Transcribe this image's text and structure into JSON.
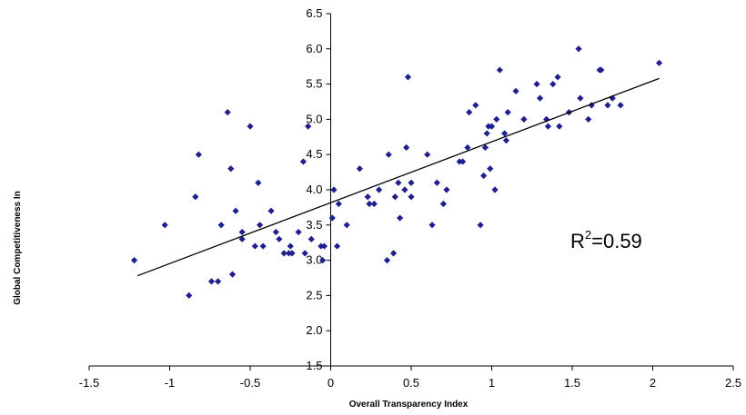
{
  "chart_data": {
    "type": "scatter",
    "xlabel": "Overall Transparency Index",
    "ylabel": "Global Competitiveness In",
    "xlim": [
      -1.5,
      2.5
    ],
    "ylim": [
      1.5,
      6.5
    ],
    "xticks": [
      "-1.5",
      "-1",
      "-0.5",
      "0",
      "0.5",
      "1",
      "1.5",
      "2",
      "2.5"
    ],
    "yticks": [
      "1.5",
      "2.0",
      "2.5",
      "3.0",
      "3.5",
      "4.0",
      "4.5",
      "5.0",
      "5.5",
      "6.0",
      "6.5"
    ],
    "grid": false,
    "legend": "none",
    "marker_color": "#1f1f8f",
    "trendline": {
      "x1": -1.2,
      "y1": 2.78,
      "x2": 2.04,
      "y2": 5.58
    },
    "annotation": {
      "base": "R",
      "sup": "2",
      "value": "=0.59"
    },
    "points": [
      {
        "x": -1.22,
        "y": 3.0
      },
      {
        "x": -1.03,
        "y": 3.5
      },
      {
        "x": -0.88,
        "y": 2.5
      },
      {
        "x": -0.84,
        "y": 3.9
      },
      {
        "x": -0.82,
        "y": 4.5
      },
      {
        "x": -0.74,
        "y": 2.7
      },
      {
        "x": -0.7,
        "y": 2.7
      },
      {
        "x": -0.68,
        "y": 3.5
      },
      {
        "x": -0.64,
        "y": 5.1
      },
      {
        "x": -0.62,
        "y": 4.3
      },
      {
        "x": -0.61,
        "y": 2.8
      },
      {
        "x": -0.59,
        "y": 3.7
      },
      {
        "x": -0.55,
        "y": 3.4
      },
      {
        "x": -0.55,
        "y": 3.3
      },
      {
        "x": -0.5,
        "y": 4.9
      },
      {
        "x": -0.47,
        "y": 3.2
      },
      {
        "x": -0.45,
        "y": 4.1
      },
      {
        "x": -0.44,
        "y": 3.5
      },
      {
        "x": -0.42,
        "y": 3.2
      },
      {
        "x": -0.37,
        "y": 3.7
      },
      {
        "x": -0.34,
        "y": 3.4
      },
      {
        "x": -0.32,
        "y": 3.3
      },
      {
        "x": -0.29,
        "y": 3.1
      },
      {
        "x": -0.26,
        "y": 3.1
      },
      {
        "x": -0.25,
        "y": 3.2
      },
      {
        "x": -0.24,
        "y": 3.1
      },
      {
        "x": -0.2,
        "y": 3.4
      },
      {
        "x": -0.17,
        "y": 4.4
      },
      {
        "x": -0.16,
        "y": 3.1
      },
      {
        "x": -0.14,
        "y": 4.9
      },
      {
        "x": -0.12,
        "y": 3.3
      },
      {
        "x": -0.06,
        "y": 3.2
      },
      {
        "x": -0.05,
        "y": 3.0
      },
      {
        "x": -0.04,
        "y": 3.2
      },
      {
        "x": 0.01,
        "y": 3.6
      },
      {
        "x": 0.02,
        "y": 4.0
      },
      {
        "x": 0.04,
        "y": 3.2
      },
      {
        "x": 0.05,
        "y": 3.8
      },
      {
        "x": 0.1,
        "y": 3.5
      },
      {
        "x": 0.18,
        "y": 4.3
      },
      {
        "x": 0.23,
        "y": 3.9
      },
      {
        "x": 0.24,
        "y": 3.8
      },
      {
        "x": 0.27,
        "y": 3.8
      },
      {
        "x": 0.3,
        "y": 4.0
      },
      {
        "x": 0.35,
        "y": 3.0
      },
      {
        "x": 0.36,
        "y": 4.5
      },
      {
        "x": 0.39,
        "y": 3.1
      },
      {
        "x": 0.4,
        "y": 3.9
      },
      {
        "x": 0.42,
        "y": 4.1
      },
      {
        "x": 0.43,
        "y": 3.6
      },
      {
        "x": 0.46,
        "y": 4.0
      },
      {
        "x": 0.47,
        "y": 4.6
      },
      {
        "x": 0.48,
        "y": 5.6
      },
      {
        "x": 0.5,
        "y": 4.1
      },
      {
        "x": 0.5,
        "y": 3.9
      },
      {
        "x": 0.6,
        "y": 4.5
      },
      {
        "x": 0.63,
        "y": 3.5
      },
      {
        "x": 0.66,
        "y": 4.1
      },
      {
        "x": 0.7,
        "y": 3.8
      },
      {
        "x": 0.72,
        "y": 4.0
      },
      {
        "x": 0.8,
        "y": 4.4
      },
      {
        "x": 0.82,
        "y": 4.4
      },
      {
        "x": 0.85,
        "y": 4.6
      },
      {
        "x": 0.86,
        "y": 5.1
      },
      {
        "x": 0.9,
        "y": 5.2
      },
      {
        "x": 0.93,
        "y": 3.5
      },
      {
        "x": 0.95,
        "y": 4.2
      },
      {
        "x": 0.96,
        "y": 4.6
      },
      {
        "x": 0.97,
        "y": 4.8
      },
      {
        "x": 0.98,
        "y": 4.9
      },
      {
        "x": 0.99,
        "y": 4.3
      },
      {
        "x": 1.0,
        "y": 4.9
      },
      {
        "x": 1.02,
        "y": 4.0
      },
      {
        "x": 1.03,
        "y": 5.0
      },
      {
        "x": 1.05,
        "y": 5.7
      },
      {
        "x": 1.08,
        "y": 4.8
      },
      {
        "x": 1.09,
        "y": 4.7
      },
      {
        "x": 1.1,
        "y": 5.1
      },
      {
        "x": 1.15,
        "y": 5.4
      },
      {
        "x": 1.2,
        "y": 5.0
      },
      {
        "x": 1.28,
        "y": 5.5
      },
      {
        "x": 1.3,
        "y": 5.3
      },
      {
        "x": 1.34,
        "y": 5.0
      },
      {
        "x": 1.35,
        "y": 4.9
      },
      {
        "x": 1.38,
        "y": 5.5
      },
      {
        "x": 1.41,
        "y": 5.6
      },
      {
        "x": 1.42,
        "y": 4.9
      },
      {
        "x": 1.48,
        "y": 5.1
      },
      {
        "x": 1.54,
        "y": 6.0
      },
      {
        "x": 1.55,
        "y": 5.3
      },
      {
        "x": 1.6,
        "y": 5.0
      },
      {
        "x": 1.62,
        "y": 5.2
      },
      {
        "x": 1.67,
        "y": 5.7
      },
      {
        "x": 1.68,
        "y": 5.7
      },
      {
        "x": 1.72,
        "y": 5.2
      },
      {
        "x": 1.75,
        "y": 5.3
      },
      {
        "x": 1.8,
        "y": 5.2
      },
      {
        "x": 2.04,
        "y": 5.8
      }
    ]
  }
}
